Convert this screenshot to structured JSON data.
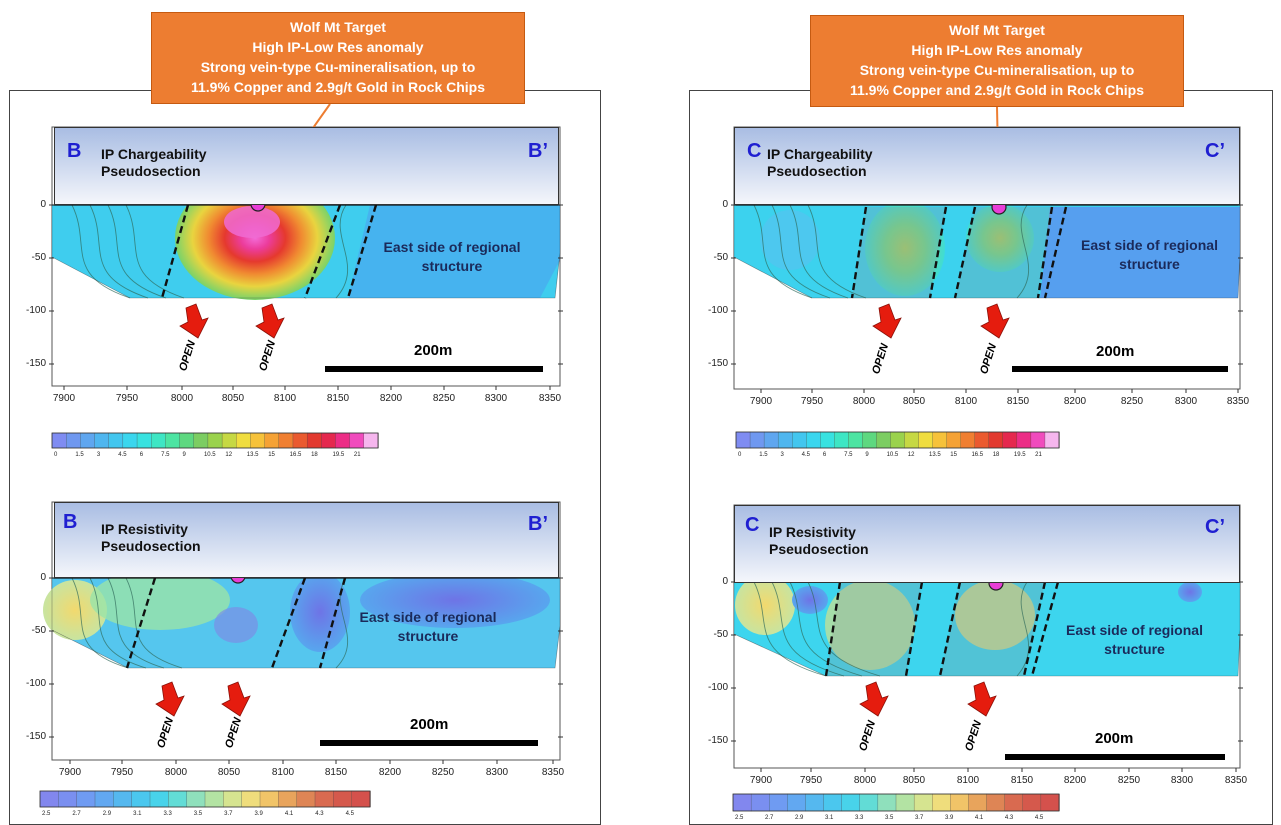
{
  "callouts": {
    "left": [
      "Wolf Mt  Target",
      "High IP-Low Res anomaly",
      "Strong vein-type Cu-mineralisation, up to",
      "11.9% Copper and 2.9g/t Gold in Rock Chips"
    ],
    "right": [
      "Wolf Mt  Target",
      "High IP-Low Res anomaly",
      "Strong vein-type Cu-mineralisation, up to",
      "11.9% Copper and 2.9g/t Gold  in Rock Chips"
    ]
  },
  "panels": {
    "lc": {
      "start": "B",
      "end": "B’",
      "title1": "IP Chargeability",
      "title2": "Pseudosection",
      "label1": "East side of regional",
      "label2": "structure",
      "scale": "200m",
      "open1": "OPEN",
      "open2": "OPEN"
    },
    "lr": {
      "start": "B",
      "end": "B’",
      "title1": "IP Resistivity",
      "title2": "Pseudosection",
      "label1": "East side of regional",
      "label2": "structure",
      "scale": "200m",
      "open1": "OPEN",
      "open2": "OPEN"
    },
    "rc": {
      "start": "C",
      "end": "C’",
      "title1": "IP Chargeability",
      "title2": "Pseudosection",
      "label1": "East side of regional",
      "label2": "structure",
      "scale": "200m",
      "open1": "OPEN",
      "open2": "OPEN"
    },
    "rr": {
      "start": "C",
      "end": "C’",
      "title1": "IP Resistivity",
      "title2": "Pseudosection",
      "label1": "East side of regional",
      "label2": "structure",
      "scale": "200m",
      "open1": "OPEN",
      "open2": "OPEN"
    }
  },
  "axes": {
    "x_ticks": [
      "7900",
      "7950",
      "8000",
      "8050",
      "8100",
      "8150",
      "8200",
      "8250",
      "8300",
      "8350"
    ],
    "y_ticks": [
      "0",
      "-50",
      "-100",
      "-150"
    ]
  },
  "colorbars": {
    "chargeability": {
      "labels": [
        "0",
        "1.5",
        "3",
        "4.5",
        "6",
        "7.5",
        "9",
        "10.5",
        "12",
        "13.5",
        "15",
        "16.5",
        "18",
        "19.5",
        "21"
      ],
      "colors": [
        "#7f8cf2",
        "#6f98f0",
        "#5fa6ef",
        "#4fb6ef",
        "#42c6ef",
        "#3ad6ee",
        "#38e2e0",
        "#3ee6c4",
        "#4ce4a2",
        "#5ed880",
        "#7ccd62",
        "#9ad24c",
        "#c6d843",
        "#f0dd3f",
        "#f6c23a",
        "#f5a235",
        "#f07f31",
        "#ea5a2f",
        "#e2392f",
        "#e5284e",
        "#ec2d86",
        "#f04bbd",
        "#f6b6ee"
      ]
    },
    "resistivity": {
      "labels": [
        "2.5",
        "2.7",
        "2.9",
        "3.1",
        "3.3",
        "3.5",
        "3.7",
        "3.9",
        "4.1",
        "4.3",
        "4.5"
      ],
      "colors": [
        "#8287ee",
        "#7a8ff0",
        "#6f9bf2",
        "#62a8f1",
        "#55b8ef",
        "#4bc7ee",
        "#48d3ea",
        "#62dcd6",
        "#8fe0bc",
        "#b3e3a3",
        "#d6e490",
        "#efdd7c",
        "#f1c468",
        "#e8a45c",
        "#de8555",
        "#d96a50",
        "#d5594c",
        "#d4514c"
      ]
    }
  },
  "colors": {
    "callout": "#ed7d31",
    "label_blue": "#1f1fd1",
    "marker": "#e83ed7",
    "arrow": "#e51c0e"
  }
}
